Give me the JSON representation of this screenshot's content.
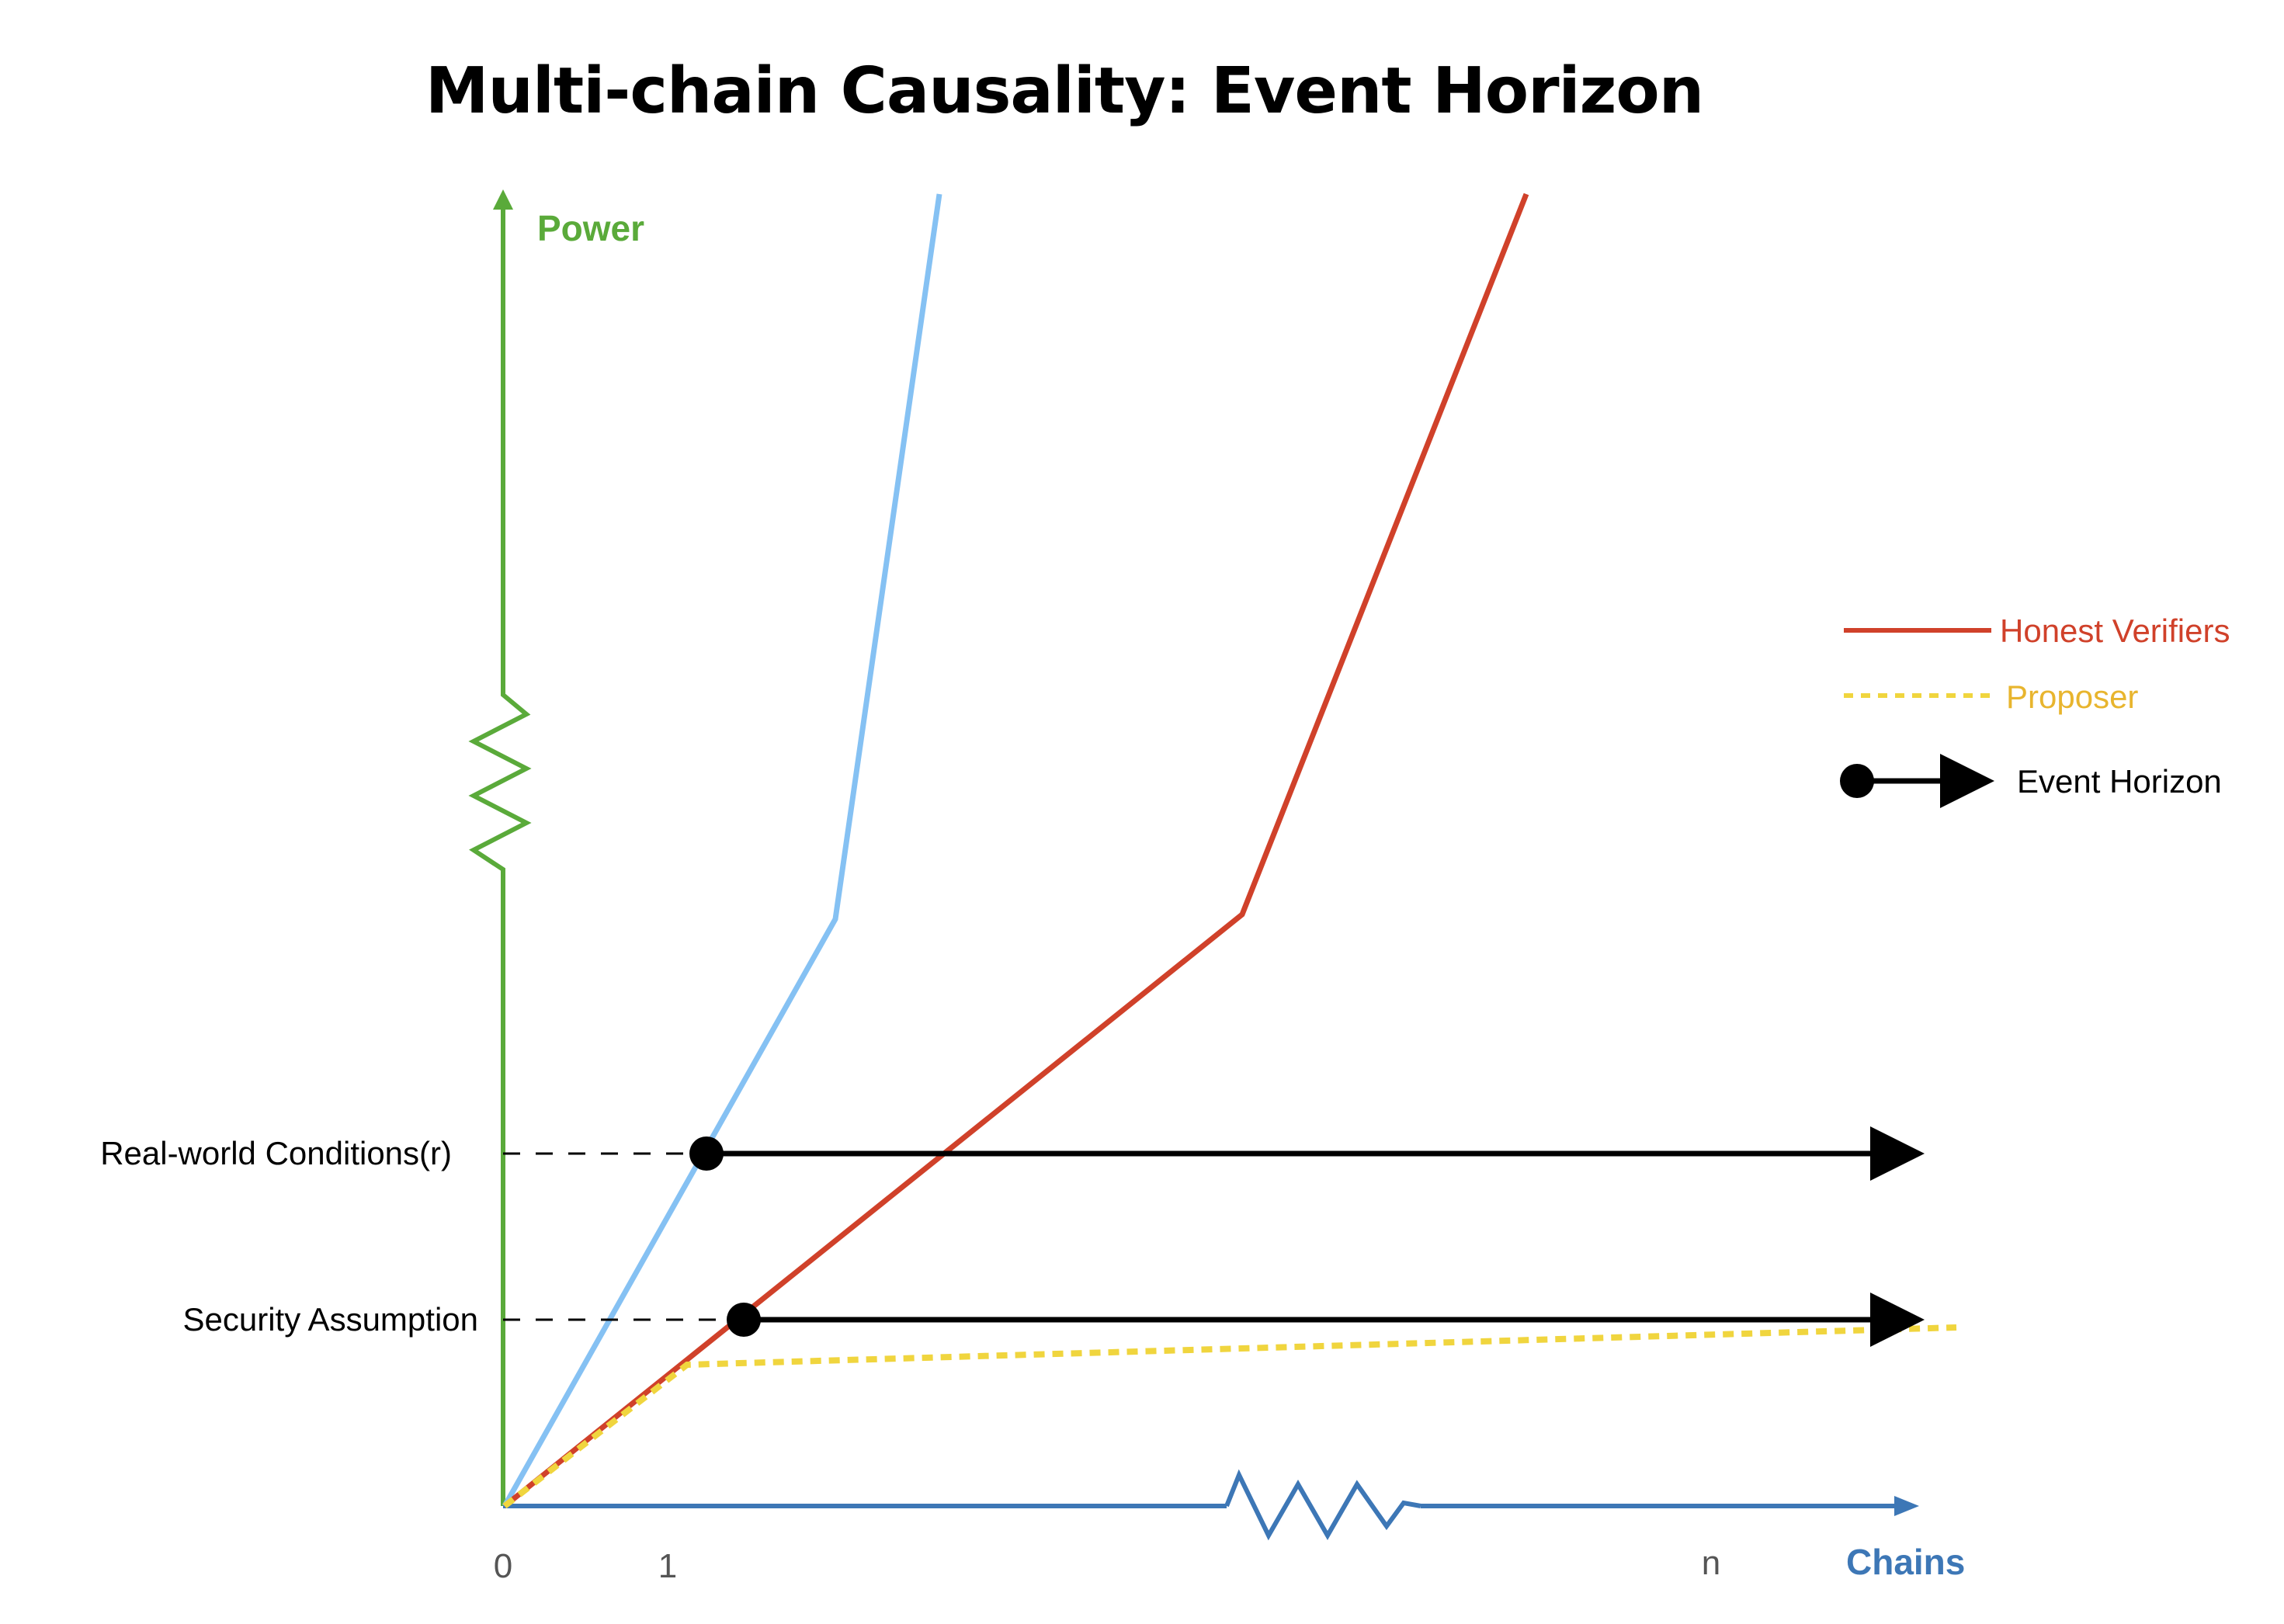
{
  "title": "Multi-chain Causality: Event Horizon",
  "axes": {
    "y_label": "Power",
    "x_label": "Chains",
    "x_ticks": [
      "0",
      "1",
      "n"
    ],
    "y_axis_color": "#5aaa3a",
    "x_axis_color": "#3d77b6"
  },
  "thresholds": {
    "real_world": "Real-world Conditions(r)",
    "security": "Security Assumption"
  },
  "legend": {
    "honest_verifiers": "Honest Verifiers",
    "proposer": "Proposer",
    "event_horizon": "Event Horizon"
  },
  "colors": {
    "honest_verifiers": "#d0412a",
    "proposer": "#f0d53e",
    "proposer_text": "#e8b52e",
    "blue_line": "#85c1f3",
    "event_horizon": "#000000",
    "title": "#000000"
  },
  "icons": {
    "y_axis_break": "zigzag-break-icon",
    "x_axis_break": "zigzag-break-icon",
    "event_horizon_marker": "dot-arrow-icon"
  }
}
